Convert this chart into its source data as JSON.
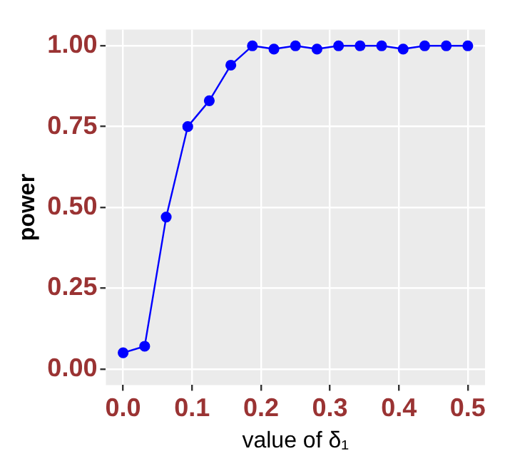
{
  "chart_data": {
    "type": "line",
    "xlabel": "value of δ₁",
    "ylabel": "power",
    "x": [
      0,
      0.03125,
      0.0625,
      0.09375,
      0.125,
      0.15625,
      0.1875,
      0.21875,
      0.25,
      0.28125,
      0.3125,
      0.34375,
      0.375,
      0.40625,
      0.4375,
      0.46875,
      0.5
    ],
    "series": [
      {
        "color": "#0000ff",
        "values": [
          0.05,
          0.07,
          0.47,
          0.75,
          0.83,
          0.94,
          1.0,
          0.99,
          1.0,
          0.99,
          1.0,
          1.0,
          1.0,
          0.99,
          1.0,
          1.0,
          1.0
        ]
      }
    ],
    "xlim": [
      -0.025,
      0.525
    ],
    "xticks": [
      {
        "value": 0,
        "label": "0.0"
      },
      0.1,
      0.2,
      0.3,
      0.4,
      0.5
    ],
    "ylim": [
      -0.05,
      1.05
    ],
    "yticks": [
      {
        "value": 0,
        "label": "0.00"
      },
      0.25,
      {
        "value": 0.5,
        "label": "0.50"
      },
      0.75,
      {
        "value": 1,
        "label": "1.00"
      }
    ],
    "grid": true,
    "marker": "circle",
    "line_style": "solid",
    "legend": false
  }
}
